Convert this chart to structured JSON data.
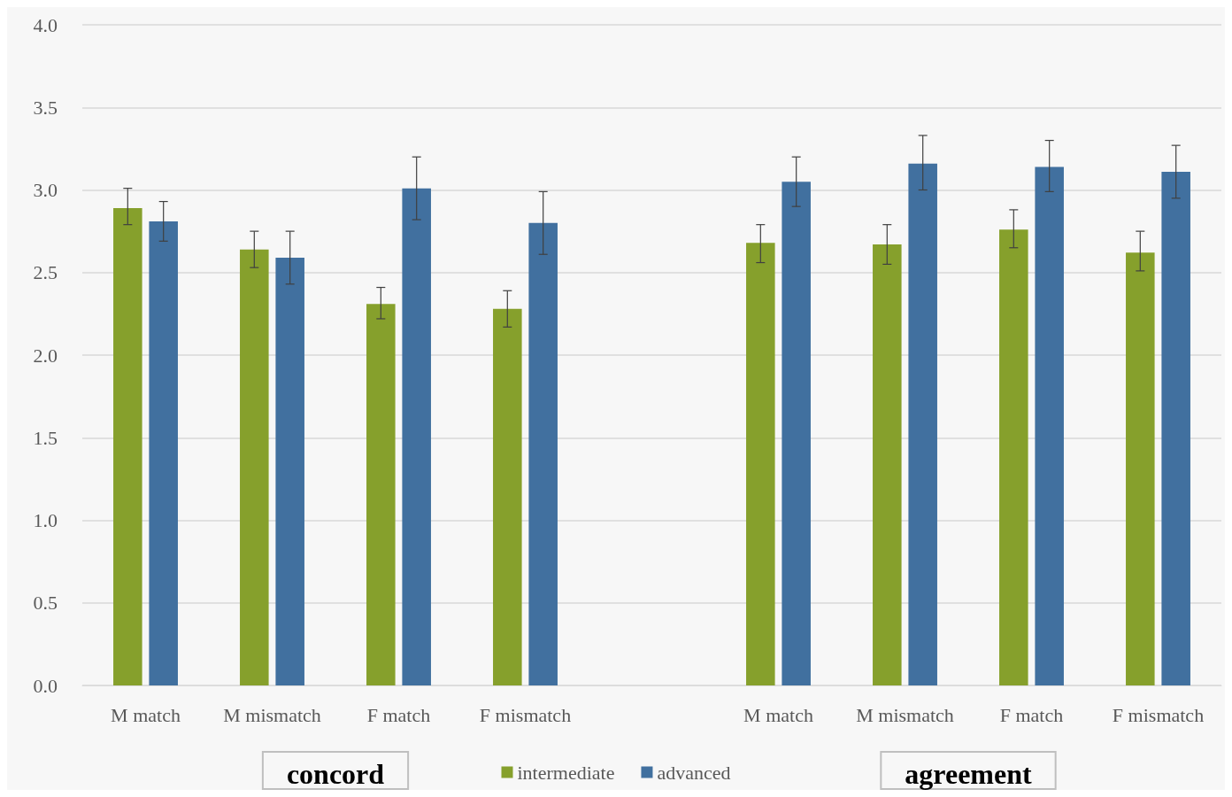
{
  "chart_data": {
    "type": "bar",
    "categories": [
      "M match",
      "M mismatch",
      "F match",
      "F mismatch",
      null,
      "M match",
      "M mismatch",
      "F match",
      "F mismatch"
    ],
    "series": [
      {
        "name": "intermediate",
        "color": "#86a02c",
        "values": [
          2.89,
          2.64,
          2.31,
          2.28,
          null,
          2.68,
          2.67,
          2.76,
          2.62
        ],
        "errors": [
          [
            2.79,
            3.01
          ],
          [
            2.53,
            2.75
          ],
          [
            2.22,
            2.41
          ],
          [
            2.17,
            2.39
          ],
          null,
          [
            2.56,
            2.79
          ],
          [
            2.55,
            2.79
          ],
          [
            2.65,
            2.88
          ],
          [
            2.51,
            2.75
          ]
        ]
      },
      {
        "name": "advanced",
        "color": "#41709f",
        "values": [
          2.81,
          2.59,
          3.01,
          2.8,
          null,
          3.05,
          3.16,
          3.14,
          3.11
        ],
        "errors": [
          [
            2.69,
            2.93
          ],
          [
            2.43,
            2.75
          ],
          [
            2.82,
            3.2
          ],
          [
            2.61,
            2.99
          ],
          null,
          [
            2.9,
            3.2
          ],
          [
            3.0,
            3.33
          ],
          [
            2.99,
            3.3
          ],
          [
            2.95,
            3.27
          ]
        ]
      }
    ],
    "ylim": [
      0,
      4
    ],
    "yticks": [
      {
        "value": 0,
        "label": "0.0"
      },
      {
        "value": 0.5,
        "label": "0.5"
      },
      {
        "value": 1,
        "label": "1.0"
      },
      {
        "value": 1.5,
        "label": "1.5"
      },
      {
        "value": 2,
        "label": "2.0"
      },
      {
        "value": 2.5,
        "label": "2.5"
      },
      {
        "value": 3,
        "label": "3.0"
      },
      {
        "value": 3.5,
        "label": "3.5"
      },
      {
        "value": 4,
        "label": "4.0"
      }
    ],
    "grid": "y",
    "legend": "bottom",
    "annotations": [
      "concord",
      "agreement"
    ]
  }
}
